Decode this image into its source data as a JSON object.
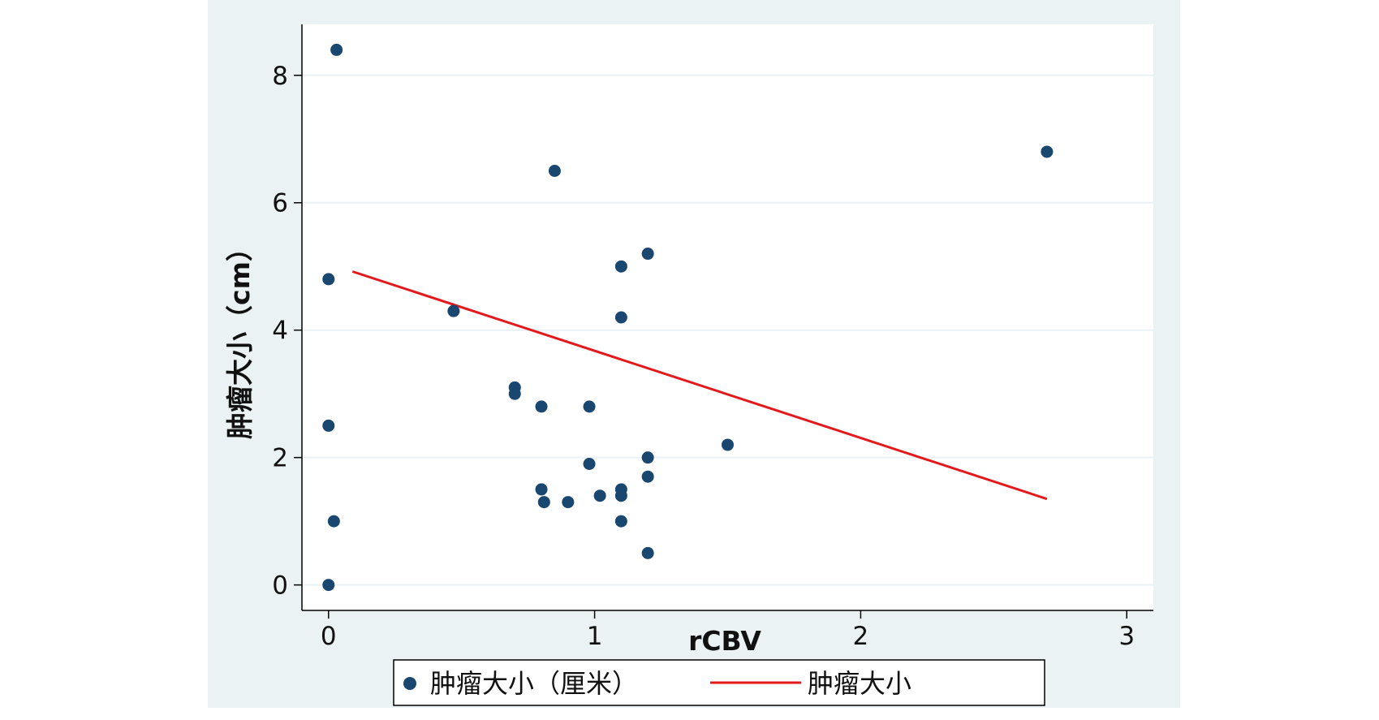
{
  "chart_data": {
    "type": "scatter",
    "title": "",
    "xlabel": "rCBV",
    "ylabel": "肿瘤大小（cm）",
    "xlim": [
      -0.1,
      3.1
    ],
    "ylim": [
      -0.4,
      8.8
    ],
    "xticks": [
      0,
      1,
      2,
      3
    ],
    "yticks": [
      0,
      2,
      4,
      6,
      8
    ],
    "grid": "horizontal",
    "legend_position": "bottom",
    "colors": {
      "outer_background": "#eaf2f3",
      "plot_background": "#ffffff",
      "gridline": "#eaf2f3",
      "marker": "#1a476f",
      "fit_line": "#e31a1c",
      "axis": "#000000"
    },
    "series": [
      {
        "name": "肿瘤大小（厘米）",
        "kind": "scatter",
        "points": [
          {
            "x": 0.03,
            "y": 8.4
          },
          {
            "x": 0.85,
            "y": 6.5
          },
          {
            "x": 2.7,
            "y": 6.8
          },
          {
            "x": 1.2,
            "y": 5.2
          },
          {
            "x": 1.1,
            "y": 5.0
          },
          {
            "x": 0.0,
            "y": 4.8
          },
          {
            "x": 0.47,
            "y": 4.3
          },
          {
            "x": 1.1,
            "y": 4.2
          },
          {
            "x": 0.7,
            "y": 3.1
          },
          {
            "x": 0.7,
            "y": 3.0
          },
          {
            "x": 0.8,
            "y": 2.8
          },
          {
            "x": 0.98,
            "y": 2.8
          },
          {
            "x": 0.0,
            "y": 2.5
          },
          {
            "x": 1.5,
            "y": 2.2
          },
          {
            "x": 1.2,
            "y": 2.0
          },
          {
            "x": 0.98,
            "y": 1.9
          },
          {
            "x": 1.2,
            "y": 1.7
          },
          {
            "x": 0.8,
            "y": 1.5
          },
          {
            "x": 1.1,
            "y": 1.5
          },
          {
            "x": 1.02,
            "y": 1.4
          },
          {
            "x": 1.1,
            "y": 1.4
          },
          {
            "x": 0.81,
            "y": 1.3
          },
          {
            "x": 0.9,
            "y": 1.3
          },
          {
            "x": 0.02,
            "y": 1.0
          },
          {
            "x": 1.1,
            "y": 1.0
          },
          {
            "x": 1.2,
            "y": 0.5
          },
          {
            "x": 0.0,
            "y": 0.0
          }
        ]
      },
      {
        "name": "肿瘤大小",
        "kind": "line",
        "points": [
          {
            "x": 0.09,
            "y": 4.92
          },
          {
            "x": 2.7,
            "y": 1.35
          }
        ]
      }
    ]
  }
}
